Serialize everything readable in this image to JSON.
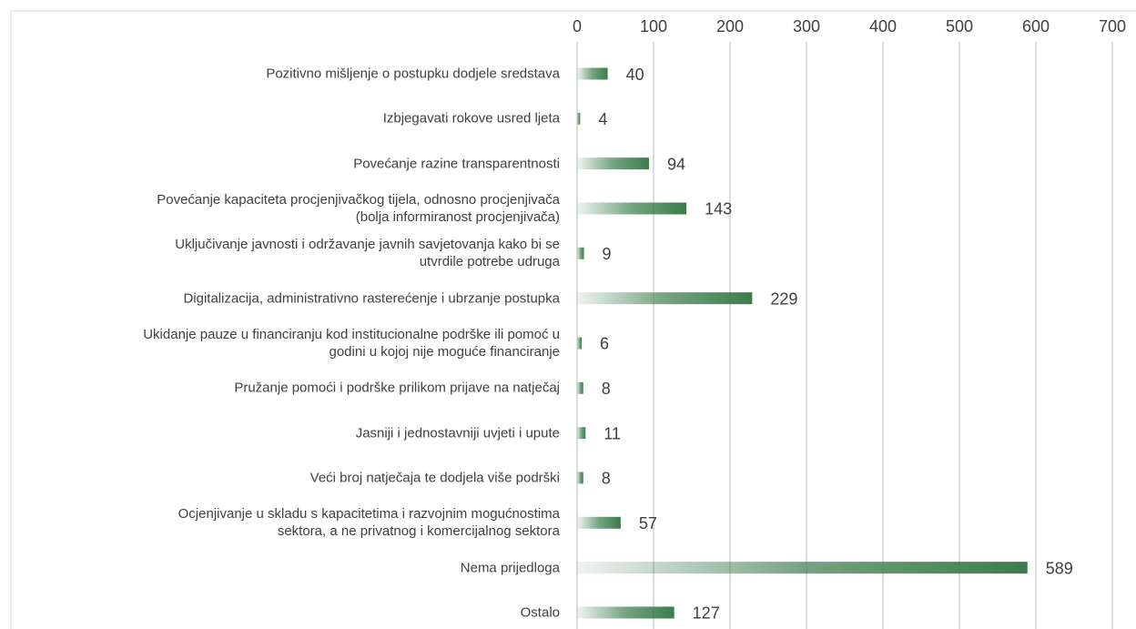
{
  "chart_data": {
    "type": "barh",
    "categories": [
      "Pozitivno mišljenje o postupku dodjele sredstava",
      "Izbjegavati rokove usred ljeta",
      "Povećanje razine transparentnosti",
      "Povećanje kapaciteta procjenjivačkog tijela, odnosno procjenjivača\n(bolja informiranost procjenjivača)",
      "Uključivanje javnosti i održavanje javnih savjetovanja kako bi se\nutvrdile potrebe udruga",
      "Digitalizacija, administrativno rasterećenje i ubrzanje postupka",
      "Ukidanje pauze u financiranju kod institucionalne podrške ili pomoć u\ngodini u kojoj nije moguće financiranje",
      "Pružanje pomoći i podrške prilikom prijave na natječaj",
      "Jasniji i jednostavniji uvjeti i upute",
      "Veći broj natječaja te dodjela više podrški",
      "Ocjenjivanje u skladu s kapacitetima i razvojnim mogućnostima\nsektora, a ne privatnog i komercijalnog sektora",
      "Nema prijedloga",
      "Ostalo"
    ],
    "values": [
      40,
      4,
      94,
      143,
      9,
      229,
      6,
      8,
      11,
      8,
      57,
      589,
      127
    ],
    "color": "#3a7d4a",
    "xlim": [
      0,
      700
    ],
    "xticks": [
      0,
      100,
      200,
      300,
      400,
      500,
      600,
      700
    ],
    "grid": true
  }
}
